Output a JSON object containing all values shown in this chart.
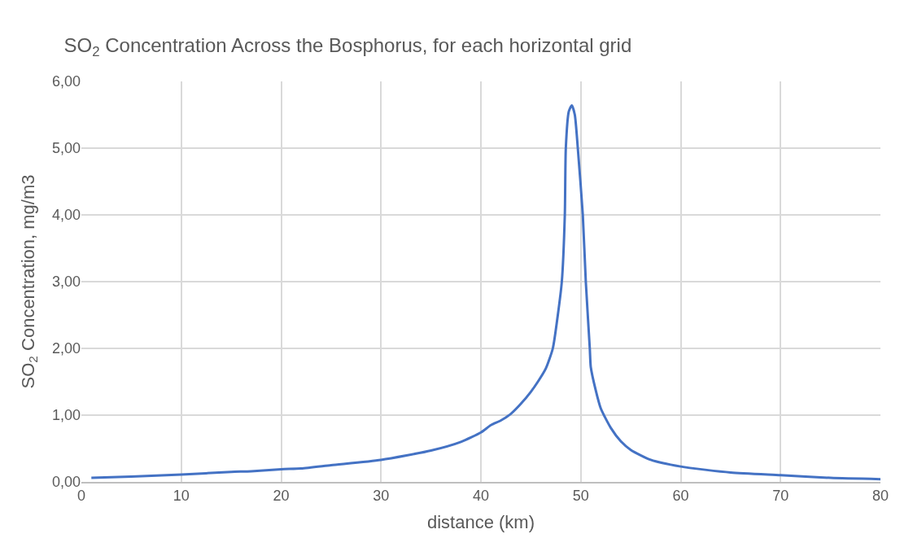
{
  "chart_data": {
    "type": "line",
    "title": "SO$_{2}$ Concentration Across the Bosphorus, for each horizontal grid",
    "xlabel": "distance (km)",
    "ylabel": "SO$_{2}$ Concentration, mg/m3",
    "x": [
      1,
      5,
      10,
      15,
      17,
      20,
      22,
      25,
      30,
      35,
      38,
      40,
      41,
      42,
      43,
      44,
      45,
      45.7,
      46.5,
      47.2,
      47.7,
      48.1,
      48.4,
      48.5,
      48.8,
      49.1,
      49.4,
      49.7,
      50.2,
      50.5,
      50.9,
      51.0,
      51.5,
      52,
      53,
      54,
      55,
      57,
      60,
      65,
      70,
      75,
      80
    ],
    "series": [
      {
        "color": "#4472c4",
        "values": [
          0.06,
          0.08,
          0.11,
          0.15,
          0.16,
          0.19,
          0.2,
          0.25,
          0.33,
          0.47,
          0.6,
          0.74,
          0.85,
          0.92,
          1.02,
          1.17,
          1.35,
          1.5,
          1.7,
          2.0,
          2.5,
          3.0,
          4.0,
          5.0,
          5.55,
          5.64,
          5.5,
          5.0,
          4.0,
          3.0,
          2.0,
          1.72,
          1.37,
          1.1,
          0.81,
          0.61,
          0.48,
          0.33,
          0.23,
          0.14,
          0.1,
          0.06,
          0.04
        ]
      }
    ],
    "xlim": [
      0,
      80
    ],
    "xticks": [
      0,
      10,
      20,
      30,
      40,
      50,
      60,
      70,
      80
    ],
    "ylim": [
      0,
      6
    ],
    "yticks": [
      {
        "value": 0,
        "label": "0,00"
      },
      {
        "value": 1,
        "label": "1,00"
      },
      {
        "value": 2,
        "label": "2,00"
      },
      {
        "value": 3,
        "label": "3,00"
      },
      {
        "value": 4,
        "label": "4,00"
      },
      {
        "value": 5,
        "label": "5,00"
      },
      {
        "value": 6,
        "label": "6,00"
      }
    ],
    "grid": true,
    "legend": false,
    "marker": "none",
    "line_style": "solid"
  }
}
